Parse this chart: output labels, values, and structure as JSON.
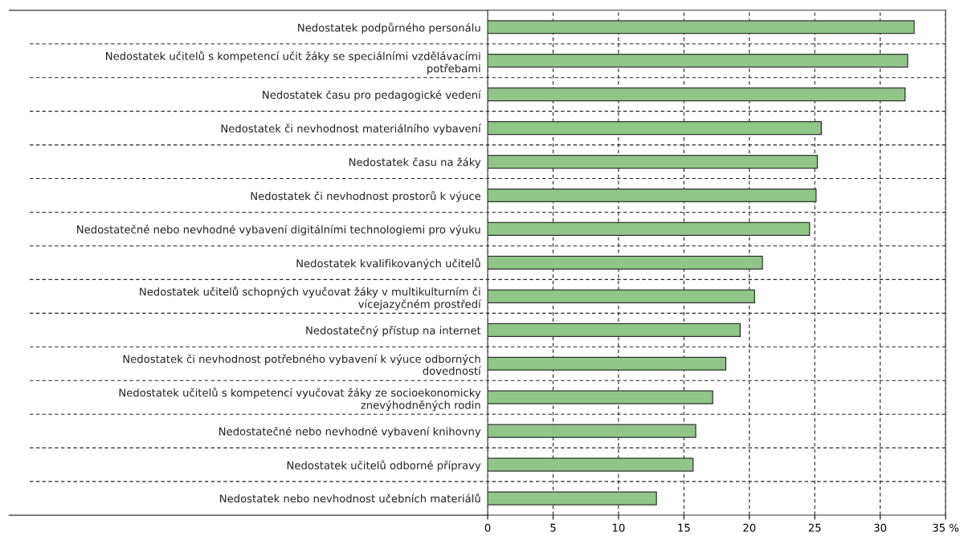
{
  "chart_data": {
    "type": "bar",
    "orientation": "horizontal",
    "categories": [
      "Nedostatek podpůrného personálu",
      "Nedostatek učitelů s kompetencí učit žáky se speciálními vzdělávacími\npotřebami",
      "Nedostatek času pro pedagogické vedení",
      "Nedostatek či nevhodnost materiálního vybavení",
      "Nedostatek času na žáky",
      "Nedostatek či nevhodnost prostorů k výuce",
      "Nedostatečné nebo nevhodné vybavení digitálními technologiemi pro výuku",
      "Nedostatek kvalifikovaných učitelů",
      "Nedostatek učitelů schopných vyučovat žáky v multikulturním či\nvícejazyčném prostředí",
      "Nedostatečný přístup na internet",
      "Nedostatek či nevhodnost potřebného vybavení k výuce odborných\ndovedností",
      "Nedostatek učitelů s kompetencí vyučovat žáky ze socioekonomicky\nznevýhodněných rodin",
      "Nedostatečné nebo nevhodné vybavení knihovny",
      "Nedostatek učitelů odborné přípravy",
      "Nedostatek nebo nevhodnost učebních materiálů"
    ],
    "values": [
      32.6,
      32.1,
      31.9,
      25.5,
      25.2,
      25.1,
      24.6,
      21.0,
      20.4,
      19.3,
      18.2,
      17.2,
      15.9,
      15.7,
      12.9
    ],
    "color": "#90c687",
    "xlim": [
      0,
      35
    ],
    "xticks": [
      0,
      5,
      10,
      15,
      20,
      25,
      30,
      {
        "value": 35,
        "label": "35 %"
      }
    ],
    "grid": true
  }
}
